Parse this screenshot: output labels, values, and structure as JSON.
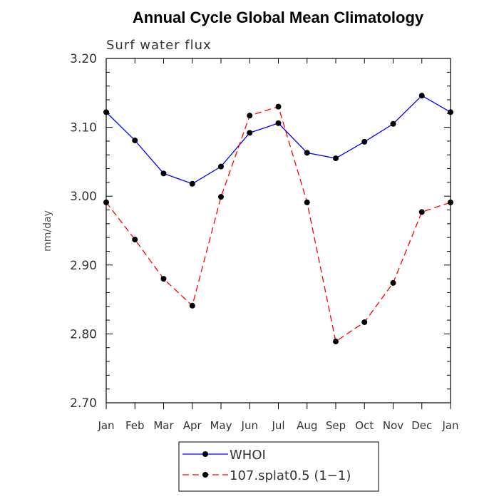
{
  "chart_data": {
    "type": "line",
    "title": "Annual Cycle Global Mean Climatology",
    "subtitle": "Surf water flux",
    "xlabel": "",
    "ylabel": "mm/day",
    "categories": [
      "Jan",
      "Feb",
      "Mar",
      "Apr",
      "May",
      "Jun",
      "Jul",
      "Aug",
      "Sep",
      "Oct",
      "Nov",
      "Dec",
      "Jan"
    ],
    "ylim": [
      2.7,
      3.2
    ],
    "yticks": [
      "2.70",
      "2.80",
      "2.90",
      "3.00",
      "3.10",
      "3.20"
    ],
    "ytick_values": [
      2.7,
      2.8,
      2.9,
      3.0,
      3.1,
      3.2
    ],
    "grid": false,
    "legend_position": "bottom-center",
    "series": [
      {
        "name": "WHOI",
        "color": "#0000ff",
        "line_style": "solid",
        "marker": "filled-circle",
        "values": [
          3.122,
          3.081,
          3.033,
          3.018,
          3.043,
          3.092,
          3.106,
          3.063,
          3.055,
          3.079,
          3.105,
          3.146,
          3.122
        ]
      },
      {
        "name": "107.splat0.5 (1−1)",
        "color": "#ff0000",
        "line_style": "dashed",
        "marker": "filled-circle",
        "values": [
          2.991,
          2.937,
          2.88,
          2.841,
          2.999,
          3.117,
          3.13,
          2.991,
          2.789,
          2.817,
          2.874,
          2.977,
          2.991
        ]
      }
    ]
  }
}
